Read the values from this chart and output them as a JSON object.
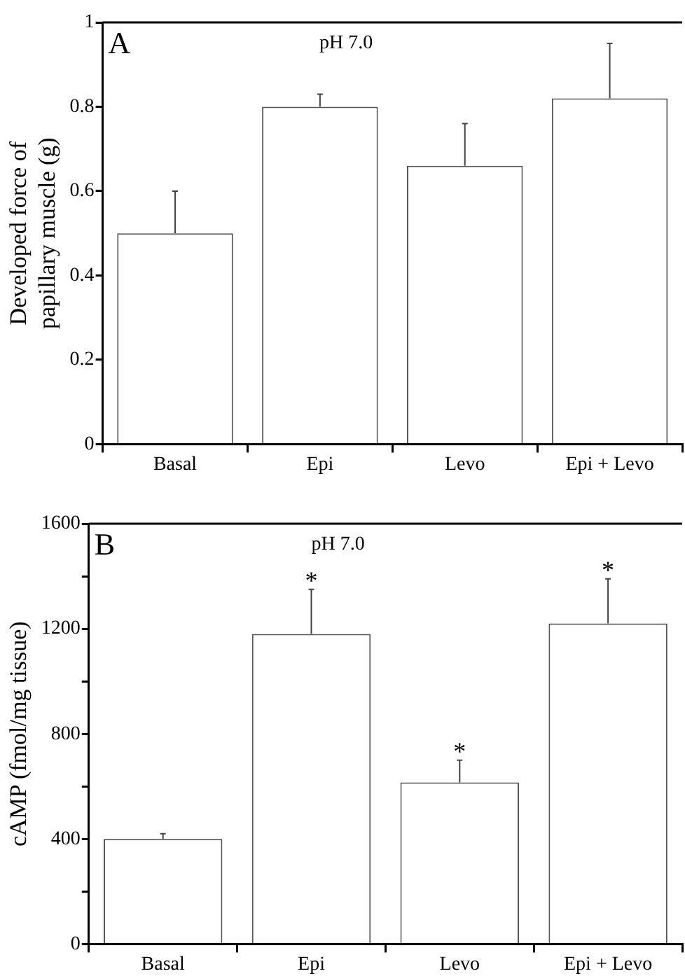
{
  "chart_data": [
    {
      "type": "bar",
      "title": "A",
      "subtitle": "pH 7.0",
      "ylabel": "Developed force of papillary muscle (g)",
      "categories": [
        "Basal",
        "Epi",
        "Levo",
        "Epi + Levo"
      ],
      "color": "#ffffff",
      "values": [
        0.5,
        0.8,
        0.66,
        0.82
      ],
      "errors": [
        [
          0.5,
          0.6
        ],
        [
          0.8,
          0.83
        ],
        [
          0.66,
          0.76
        ],
        [
          0.82,
          0.95
        ]
      ],
      "ylim": [
        0,
        1
      ],
      "yticks": [
        0,
        0.2,
        0.4,
        0.6,
        0.8,
        1
      ],
      "grid": false,
      "legend": false
    },
    {
      "type": "bar",
      "title": "B",
      "subtitle": "pH 7.0",
      "ylabel": "cAMP (fmol/mg tissue)",
      "categories": [
        "Basal",
        "Epi",
        "Levo",
        "Epi + Levo"
      ],
      "color": "#ffffff",
      "values": [
        400,
        1180,
        615,
        1220
      ],
      "errors": [
        [
          400,
          420
        ],
        [
          1180,
          1350
        ],
        [
          615,
          700
        ],
        [
          1220,
          1390
        ]
      ],
      "ylim": [
        0,
        1600
      ],
      "yticks": [
        0,
        {
          "value": 200,
          "label": null
        },
        400,
        {
          "value": 600,
          "label": null
        },
        800,
        {
          "value": 1000,
          "label": null
        },
        1200,
        {
          "value": 1400,
          "label": null
        },
        1600
      ],
      "annotations": [
        {
          "text": "*",
          "x": "Epi",
          "y": 1350
        },
        {
          "text": "*",
          "x": "Levo",
          "y": 700
        },
        {
          "text": "*",
          "x": "Epi + Levo",
          "y": 1390
        }
      ],
      "grid": false,
      "legend": false
    }
  ]
}
